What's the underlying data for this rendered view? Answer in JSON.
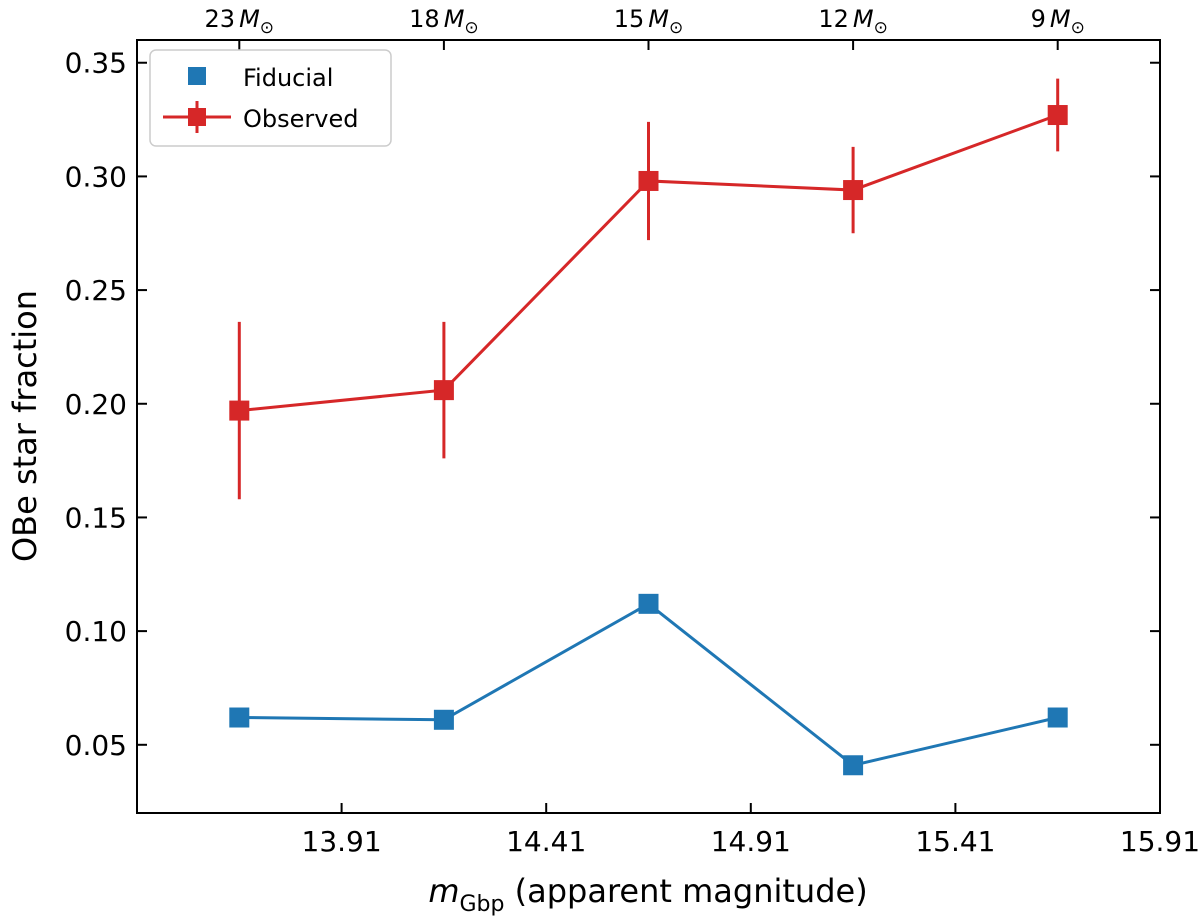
{
  "chart_data": {
    "type": "line",
    "xlabel_prefix": "m",
    "xlabel_subscript": "Gbp",
    "xlabel_suffix": " (apparent magnitude)",
    "ylabel": "OBe star fraction",
    "xlim": [
      13.41,
      15.91
    ],
    "ylim": [
      0.02,
      0.36
    ],
    "x": [
      13.66,
      14.16,
      14.66,
      15.16,
      15.66
    ],
    "x_ticks": [
      13.91,
      14.41,
      14.91,
      15.41,
      15.91
    ],
    "x_tick_labels": [
      "13.91",
      "14.41",
      "14.91",
      "15.41",
      "15.91"
    ],
    "y_ticks": [
      0.05,
      0.1,
      0.15,
      0.2,
      0.25,
      0.3,
      0.35
    ],
    "y_tick_labels": [
      "0.05",
      "0.10",
      "0.15",
      "0.20",
      "0.25",
      "0.30",
      "0.35"
    ],
    "top_axis_labels": [
      {
        "value": "23",
        "unit": "M",
        "sub": "⊙"
      },
      {
        "value": "18",
        "unit": "M",
        "sub": "⊙"
      },
      {
        "value": "15",
        "unit": "M",
        "sub": "⊙"
      },
      {
        "value": "12",
        "unit": "M",
        "sub": "⊙"
      },
      {
        "value": "9",
        "unit": "M",
        "sub": "⊙"
      }
    ],
    "series": [
      {
        "name": "Fiducial",
        "color": "#1f77b4",
        "values": [
          0.062,
          0.061,
          0.112,
          0.041,
          0.062
        ],
        "errors": null
      },
      {
        "name": "Observed",
        "color": "#d62728",
        "values": [
          0.197,
          0.206,
          0.298,
          0.294,
          0.327
        ],
        "errors": [
          [
            0.039,
            0.039
          ],
          [
            0.03,
            0.03
          ],
          [
            0.026,
            0.026
          ],
          [
            0.019,
            0.019
          ],
          [
            0.016,
            0.016
          ]
        ]
      }
    ],
    "legend": {
      "position": "top-left",
      "entries": [
        "Fiducial",
        "Observed"
      ]
    }
  }
}
